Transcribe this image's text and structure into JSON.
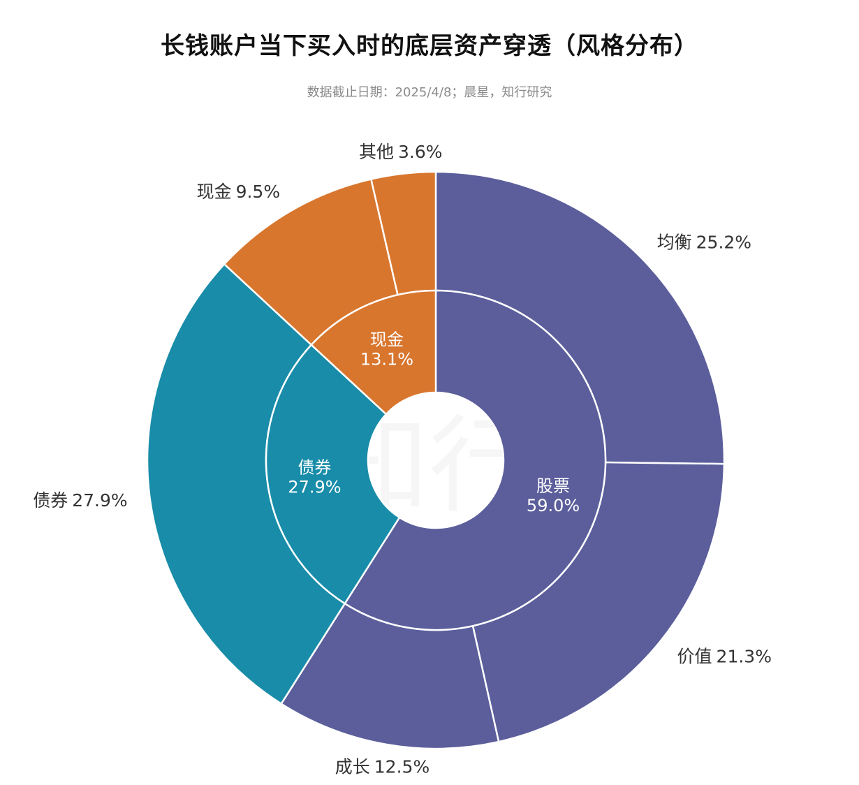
{
  "title": "长钱账户当下买入时的底层资产穿透（风格分布）",
  "subtitle": "数据截止日期：2025/4/8；晨星，知行研究",
  "colors": {
    "stock": "#5b5e9b",
    "bond": "#188ca8",
    "cash": "#d8762e",
    "separator": "#ffffff"
  },
  "chart_data": {
    "type": "pie",
    "variant": "two-level donut (sunburst)",
    "start_angle_deg": 0,
    "direction": "clockwise",
    "inner_ring": [
      {
        "name": "股票",
        "value": 59.0,
        "label": "59.0%",
        "color_key": "stock"
      },
      {
        "name": "债券",
        "value": 27.9,
        "label": "27.9%",
        "color_key": "bond"
      },
      {
        "name": "现金",
        "value": 13.1,
        "label": "13.1%",
        "color_key": "cash"
      }
    ],
    "outer_ring": [
      {
        "name": "均衡",
        "value": 25.2,
        "label": "25.2%",
        "parent": "股票",
        "color_key": "stock"
      },
      {
        "name": "价值",
        "value": 21.3,
        "label": "21.3%",
        "parent": "股票",
        "color_key": "stock"
      },
      {
        "name": "成长",
        "value": 12.5,
        "label": "12.5%",
        "parent": "股票",
        "color_key": "stock"
      },
      {
        "name": "债券",
        "value": 27.9,
        "label": "27.9%",
        "parent": "债券",
        "color_key": "bond"
      },
      {
        "name": "现金",
        "value": 9.5,
        "label": "9.5%",
        "parent": "现金",
        "color_key": "cash"
      },
      {
        "name": "其他",
        "value": 3.6,
        "label": "3.6%",
        "parent": "现金",
        "color_key": "cash"
      }
    ],
    "watermark": "知行"
  }
}
